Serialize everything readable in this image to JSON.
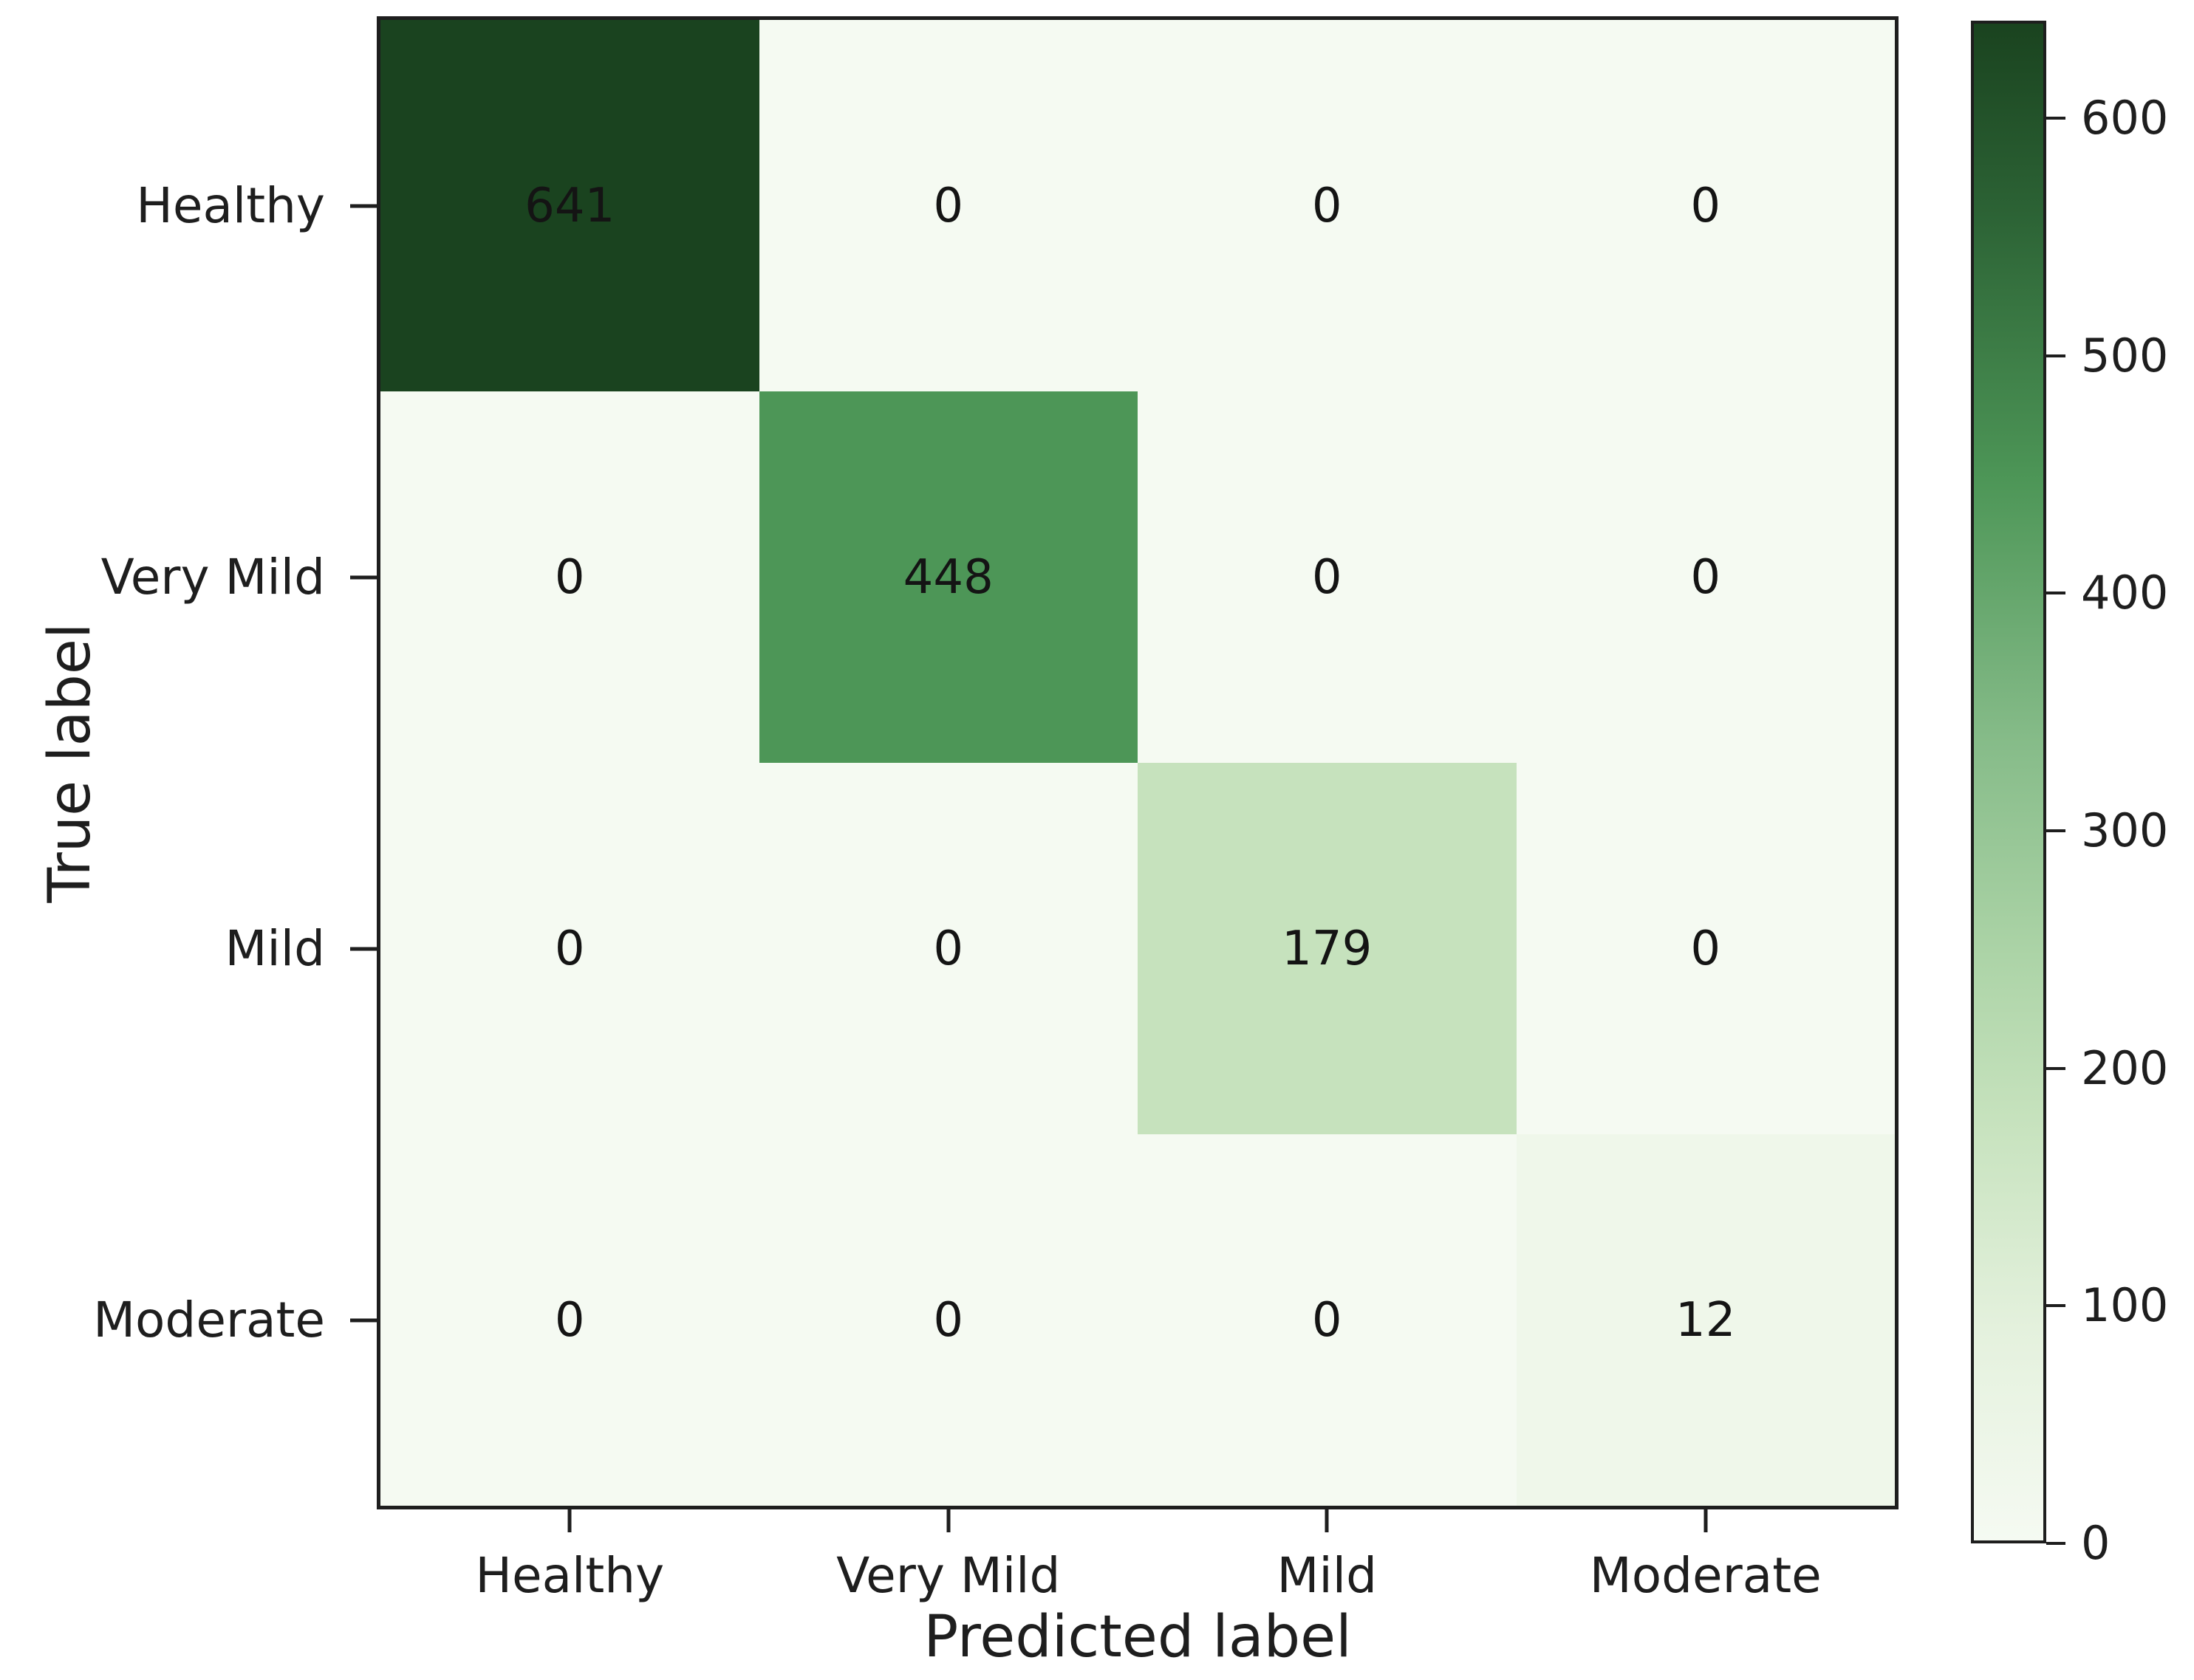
{
  "figure": {
    "background": "#ffffff",
    "spine_color": "#1e1e1e",
    "text_color": "#1e1e1e",
    "annotation_color": "#141414"
  },
  "chart_data": {
    "type": "heatmap",
    "title": "",
    "xlabel": "Predicted label",
    "ylabel": "True label",
    "x_categories": [
      "Healthy",
      "Very Mild",
      "Mild",
      "Moderate"
    ],
    "y_categories": [
      "Healthy",
      "Very Mild",
      "Mild",
      "Moderate"
    ],
    "matrix": [
      [
        641,
        0,
        0,
        0
      ],
      [
        0,
        448,
        0,
        0
      ],
      [
        0,
        0,
        179,
        0
      ],
      [
        0,
        0,
        0,
        12
      ]
    ],
    "cell_colors": [
      [
        "#1a431f",
        "#f5faf2",
        "#f5faf2",
        "#f5faf2"
      ],
      [
        "#f5faf2",
        "#4d9657",
        "#f5faf2",
        "#f5faf2"
      ],
      [
        "#f5faf2",
        "#f5faf2",
        "#c6e2bd",
        "#f5faf2"
      ],
      [
        "#f5faf2",
        "#f5faf2",
        "#f5faf2",
        "#eff7ea"
      ]
    ],
    "colormap": "Greens",
    "vmin": 0,
    "vmax": 641,
    "legend_position": "right-colorbar",
    "grid": false,
    "colorbar": {
      "ticks": [
        0,
        100,
        200,
        300,
        400,
        500,
        600
      ],
      "gradient_top_to_bottom": [
        {
          "pos": 0,
          "color": "#1a431f"
        },
        {
          "pos": 12.6,
          "color": "#2c6335"
        },
        {
          "pos": 30.1,
          "color": "#4d9657"
        },
        {
          "pos": 47,
          "color": "#85bb88"
        },
        {
          "pos": 61,
          "color": "#abd3a6"
        },
        {
          "pos": 72.1,
          "color": "#c6e2bd"
        },
        {
          "pos": 86,
          "color": "#e4f1dd"
        },
        {
          "pos": 100,
          "color": "#f5faf2"
        }
      ]
    }
  }
}
